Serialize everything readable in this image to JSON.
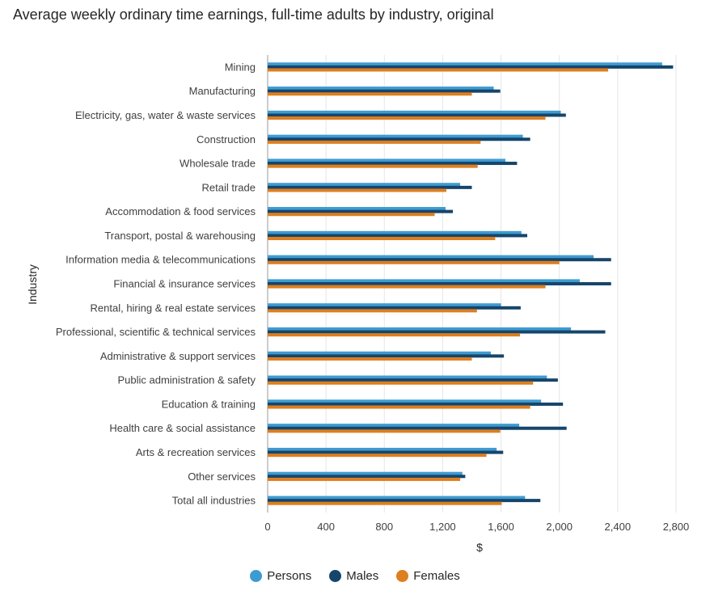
{
  "colors": {
    "persons": "#3e9bd1",
    "males": "#16456b",
    "females": "#de7e1f",
    "grid": "#e6e6e6",
    "axis": "#9a9a9a"
  },
  "chart_data": {
    "type": "bar",
    "orientation": "horizontal",
    "title": "Average weekly ordinary time earnings, full-time adults by industry, original",
    "xlabel": "$",
    "ylabel": "Industry",
    "xlim": [
      0,
      2900
    ],
    "xticks": [
      0,
      400,
      800,
      1200,
      1600,
      2000,
      2400,
      2800
    ],
    "xtick_labels": [
      "0",
      "400",
      "800",
      "1,200",
      "1,600",
      "2,000",
      "2,400",
      "2,800"
    ],
    "grid": true,
    "legend_position": "bottom",
    "categories": [
      "Mining",
      "Manufacturing",
      "Electricity, gas, water & waste services",
      "Construction",
      "Wholesale trade",
      "Retail trade",
      "Accommodation & food services",
      "Transport, postal & warehousing",
      "Information media & telecommunications",
      "Financial & insurance services",
      "Rental, hiring & real estate services",
      "Professional, scientific & technical services",
      "Administrative & support services",
      "Public administration & safety",
      "Education & training",
      "Health care & social assistance",
      "Arts & recreation services",
      "Other services",
      "Total all industries"
    ],
    "series": [
      {
        "name": "Persons",
        "values": [
          2705,
          1550,
          2010,
          1750,
          1630,
          1320,
          1220,
          1740,
          2235,
          2140,
          1600,
          2080,
          1530,
          1915,
          1875,
          1725,
          1570,
          1335,
          1765
        ]
      },
      {
        "name": "Males",
        "values": [
          2780,
          1595,
          2045,
          1800,
          1710,
          1400,
          1270,
          1780,
          2355,
          2355,
          1735,
          2315,
          1620,
          1990,
          2025,
          2050,
          1615,
          1355,
          1870
        ]
      },
      {
        "name": "Females",
        "values": [
          2335,
          1400,
          1905,
          1460,
          1440,
          1225,
          1145,
          1560,
          2000,
          1905,
          1435,
          1730,
          1400,
          1820,
          1800,
          1595,
          1500,
          1320,
          1605
        ]
      }
    ]
  }
}
